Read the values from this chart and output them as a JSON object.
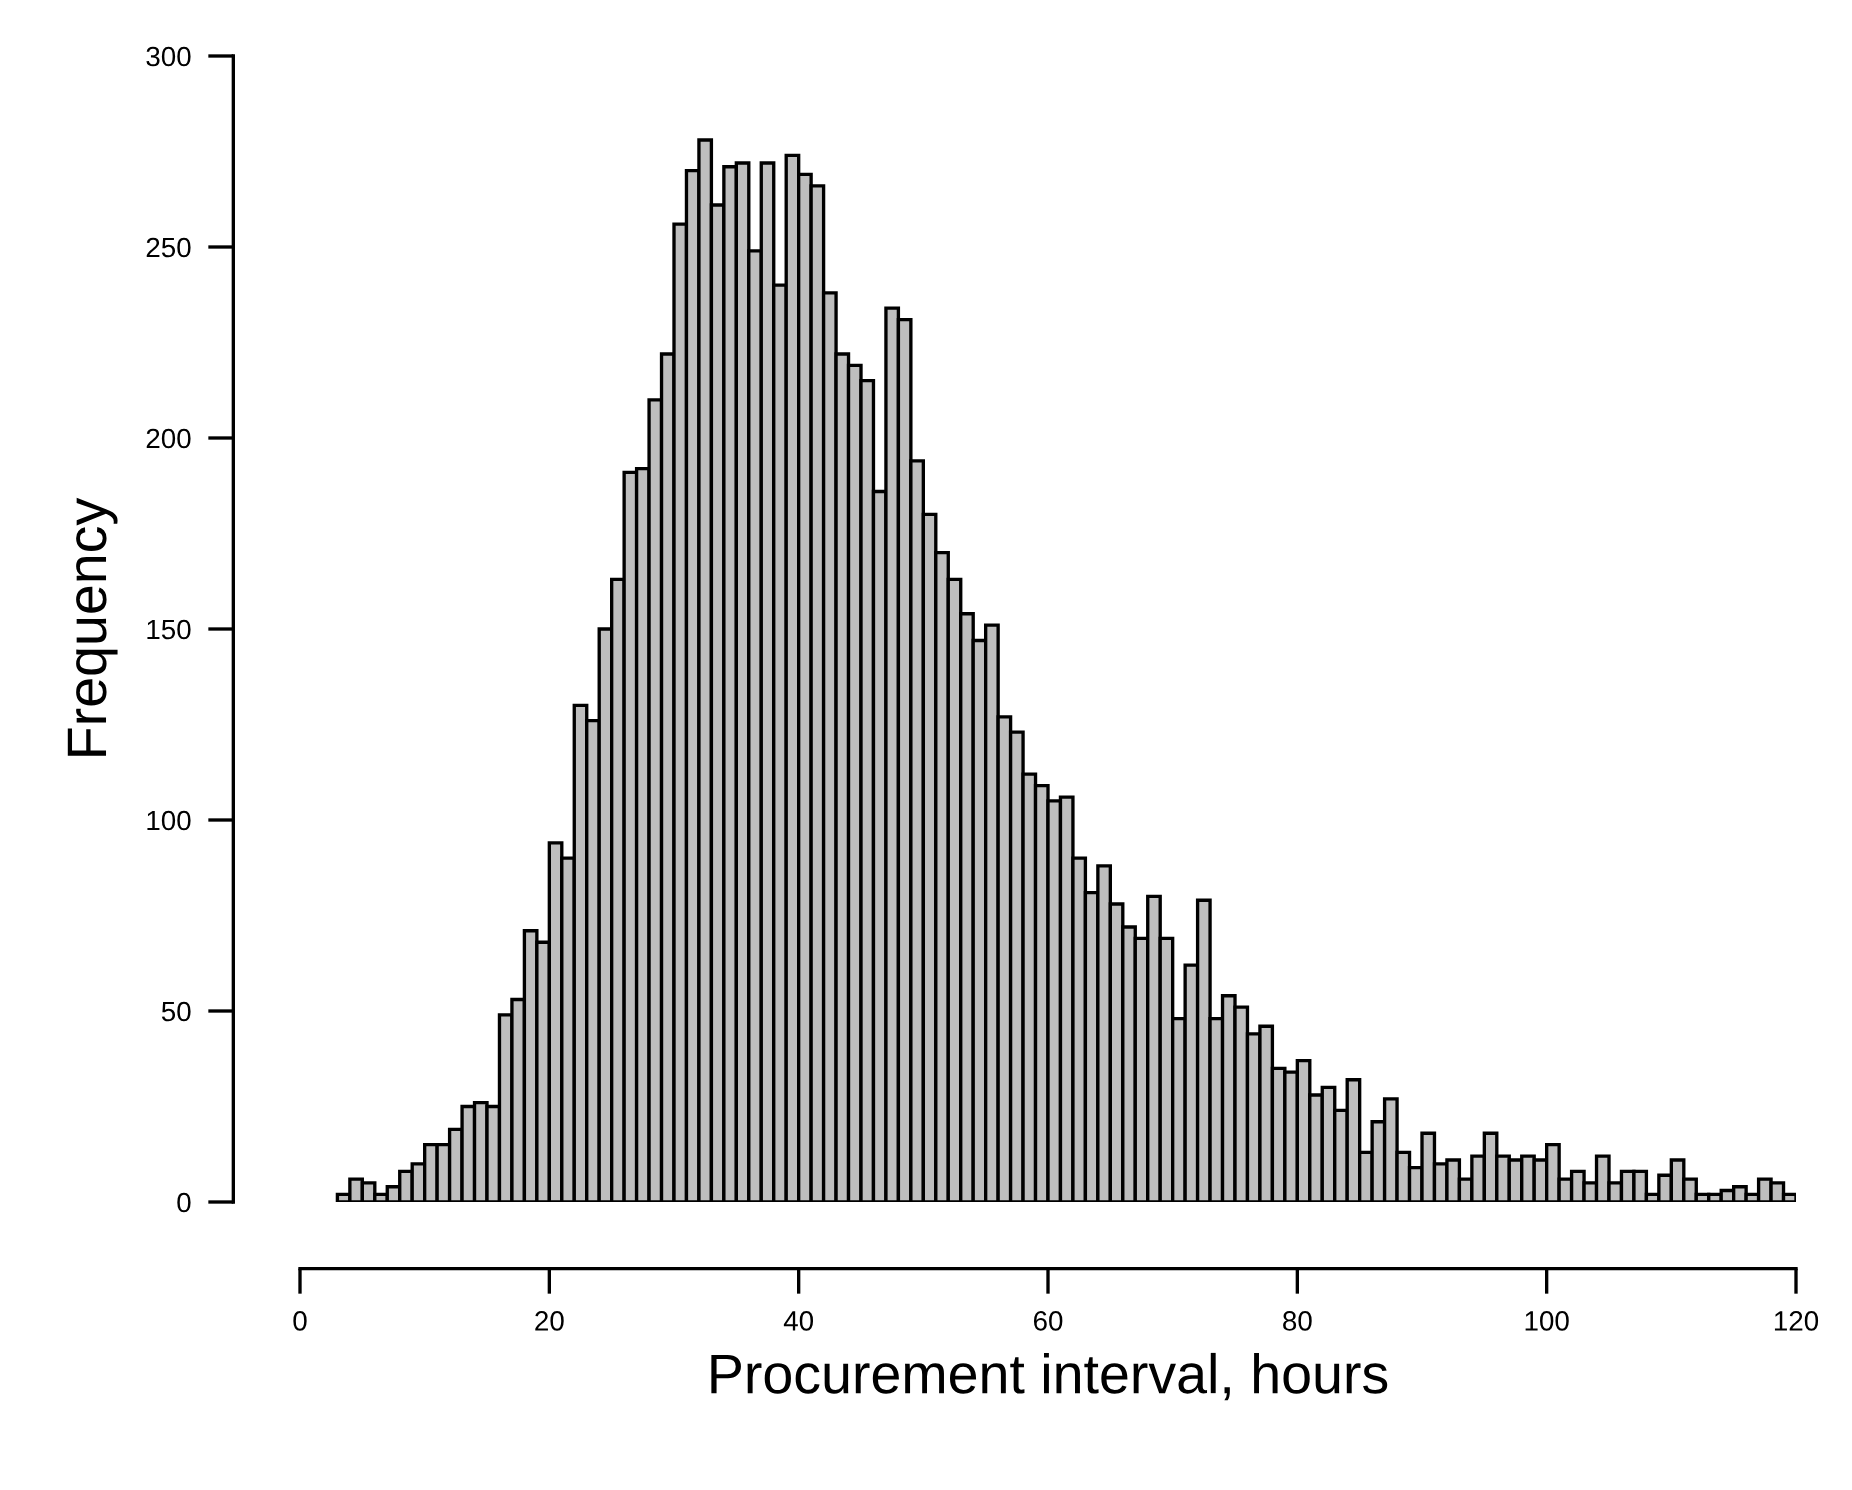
{
  "chart_data": {
    "type": "histogram",
    "xlabel": "Procurement interval, hours",
    "ylabel": "Frequency",
    "bins": [
      3,
      4,
      5,
      6,
      7,
      8,
      9,
      10,
      11,
      12,
      13,
      14,
      15,
      16,
      17,
      18,
      19,
      20,
      21,
      22,
      23,
      24,
      25,
      26,
      27,
      28,
      29,
      30,
      31,
      32,
      33,
      34,
      35,
      36,
      37,
      38,
      39,
      40,
      41,
      42,
      43,
      44,
      45,
      46,
      47,
      48,
      49,
      50,
      51,
      52,
      53,
      54,
      55,
      56,
      57,
      58,
      59,
      60,
      61,
      62,
      63,
      64,
      65,
      66,
      67,
      68,
      69,
      70,
      71,
      72,
      73,
      74,
      75,
      76,
      77,
      78,
      79,
      80,
      81,
      82,
      83,
      84,
      85,
      86,
      87,
      88,
      89,
      90,
      91,
      92,
      93,
      94,
      95,
      96,
      97,
      98,
      99,
      100,
      101,
      102,
      103,
      104,
      105,
      106,
      107,
      108,
      109,
      110,
      111,
      112,
      113,
      114,
      115,
      116,
      117,
      118,
      119,
      120
    ],
    "values": [
      2,
      6,
      5,
      2,
      4,
      8,
      10,
      15,
      15,
      19,
      25,
      26,
      25,
      49,
      53,
      71,
      68,
      94,
      90,
      130,
      126,
      150,
      163,
      191,
      192,
      210,
      222,
      256,
      270,
      278,
      261,
      271,
      272,
      249,
      272,
      240,
      274,
      269,
      266,
      238,
      222,
      219,
      215,
      186,
      234,
      231,
      194,
      180,
      170,
      163,
      154,
      147,
      151,
      127,
      123,
      112,
      109,
      105,
      106,
      90,
      81,
      88,
      78,
      72,
      69,
      80,
      69,
      48,
      62,
      79,
      48,
      54,
      51,
      44,
      46,
      35,
      34,
      37,
      28,
      30,
      24,
      32,
      13,
      21,
      27,
      13,
      9,
      18,
      10,
      11,
      6,
      12,
      18,
      12,
      11,
      12,
      11,
      15,
      6,
      8,
      5,
      12,
      5,
      8,
      8,
      2,
      7,
      11,
      6,
      2,
      2,
      3,
      4,
      2,
      6,
      5,
      2
    ],
    "color": "#bebebe",
    "xlim": [
      0,
      120
    ],
    "xticks": [
      0,
      20,
      40,
      60,
      80,
      100,
      120
    ],
    "ylim": [
      0,
      300
    ],
    "yticks": [
      0,
      50,
      100,
      150,
      200,
      250,
      300
    ],
    "grid": false,
    "legend": false
  }
}
